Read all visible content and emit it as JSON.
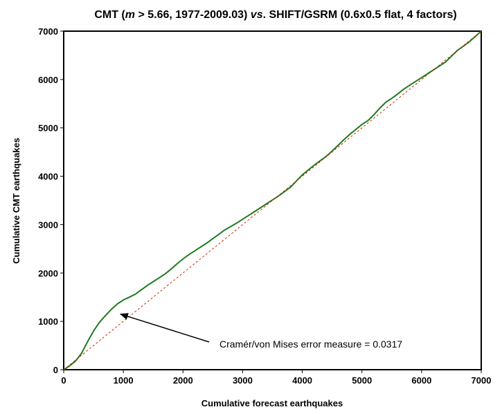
{
  "chart_data": {
    "type": "line",
    "title_parts": {
      "prefix": "CMT (",
      "variable": "m",
      "middle": " > 5.66, 1977-2009.03) ",
      "vs": "vs",
      "suffix": ". SHIFT/GSRM (0.6x0.5 flat, 4 factors)"
    },
    "xlabel": "Cumulative forecast earthquakes",
    "ylabel": "Cumulative CMT earthquakes",
    "xlim": [
      0,
      7000
    ],
    "ylim": [
      0,
      7000
    ],
    "xticks": [
      "0",
      "1000",
      "2000",
      "3000",
      "4000",
      "5000",
      "6000",
      "7000"
    ],
    "yticks": [
      "0",
      "1000",
      "2000",
      "3000",
      "4000",
      "5000",
      "6000",
      "7000"
    ],
    "grid": false,
    "series": [
      {
        "color": "#1f7a1f",
        "style": "solid",
        "x": [
          0,
          100,
          200,
          300,
          400,
          500,
          600,
          700,
          800,
          900,
          1000,
          1100,
          1200,
          1300,
          1400,
          1500,
          1600,
          1700,
          1800,
          1900,
          2000,
          2100,
          2200,
          2300,
          2400,
          2500,
          2600,
          2700,
          2800,
          2900,
          3000,
          3100,
          3200,
          3300,
          3400,
          3500,
          3600,
          3700,
          3800,
          3900,
          4000,
          4100,
          4200,
          4300,
          4400,
          4500,
          4600,
          4700,
          4800,
          4900,
          5000,
          5100,
          5200,
          5300,
          5400,
          5500,
          5600,
          5700,
          5800,
          5900,
          6000,
          6100,
          6200,
          6300,
          6400,
          6500,
          6600,
          6700,
          6800,
          6900,
          7000
        ],
        "y": [
          0,
          80,
          180,
          340,
          580,
          800,
          980,
          1120,
          1250,
          1360,
          1440,
          1500,
          1560,
          1650,
          1740,
          1820,
          1900,
          1980,
          2080,
          2190,
          2290,
          2380,
          2460,
          2540,
          2620,
          2710,
          2800,
          2890,
          2960,
          3030,
          3110,
          3190,
          3270,
          3350,
          3430,
          3510,
          3590,
          3680,
          3770,
          3900,
          4030,
          4130,
          4230,
          4320,
          4410,
          4520,
          4640,
          4760,
          4870,
          4970,
          5070,
          5150,
          5270,
          5410,
          5530,
          5610,
          5700,
          5800,
          5880,
          5960,
          6040,
          6120,
          6200,
          6280,
          6360,
          6480,
          6600,
          6690,
          6780,
          6890,
          7000
        ]
      },
      {
        "color": "#cc2200",
        "style": "dashed",
        "x": [
          0,
          7000
        ],
        "y": [
          0,
          7000
        ]
      }
    ],
    "annotations": [
      {
        "text": "Cramér/von Mises error measure = 0.0317",
        "arrow_to": [
          950,
          1150
        ]
      }
    ]
  }
}
